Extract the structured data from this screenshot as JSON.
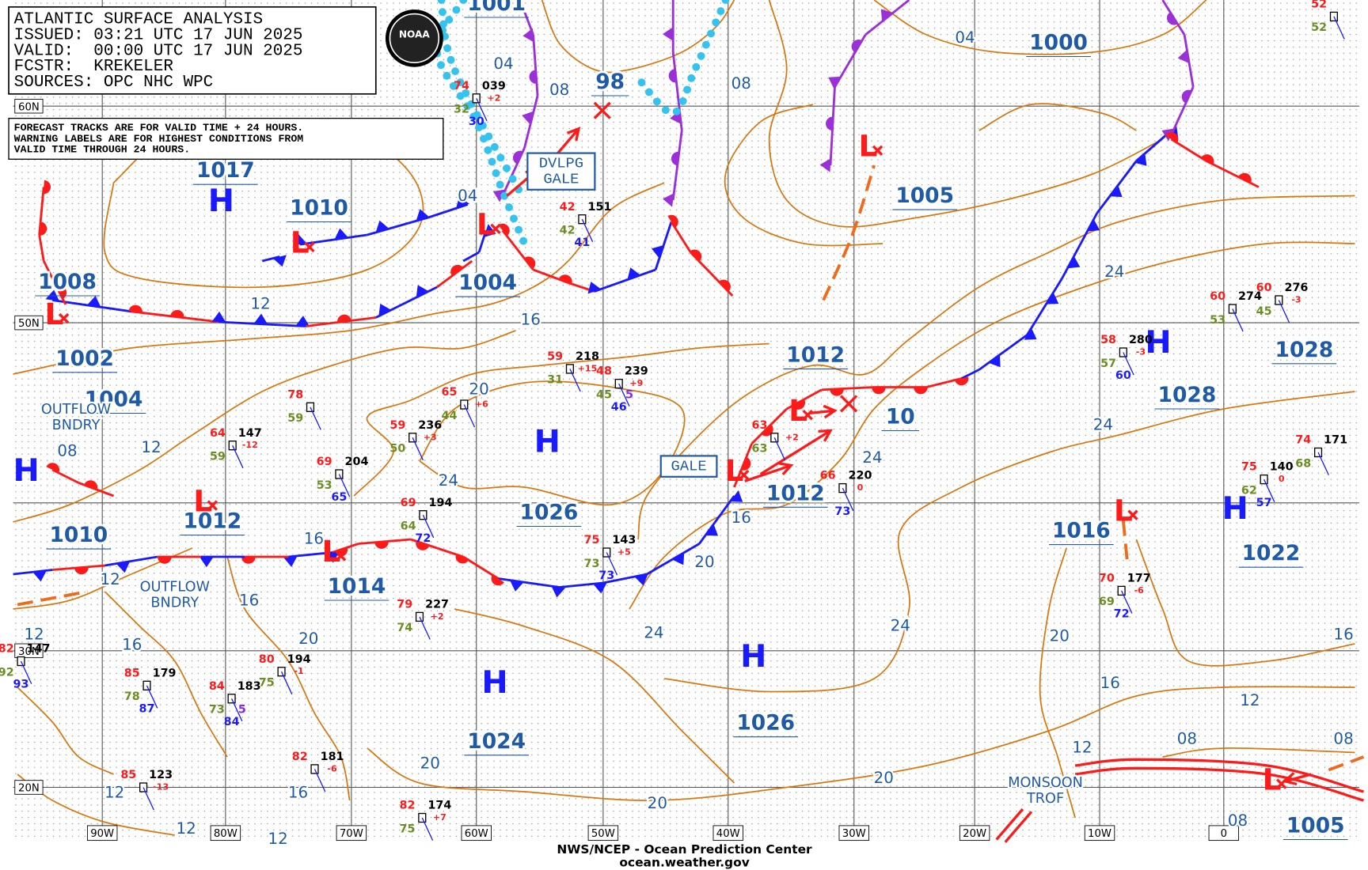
{
  "header": {
    "lines": [
      "ATLANTIC SURFACE ANALYSIS",
      "ISSUED: 03:21 UTC 17 JUN 2025",
      "VALID:  00:00 UTC 17 JUN 2025",
      "FCSTR:  KREKELER",
      "SOURCES: OPC NHC WPC"
    ]
  },
  "logo": "NOAA",
  "notice": {
    "lines": [
      "FORECAST TRACKS ARE FOR VALID TIME + 24 HOURS.",
      "WARNING LABELS ARE FOR HIGHEST CONDITIONS FROM",
      "VALID TIME THROUGH 24 HOURS."
    ]
  },
  "pressure_labels": [
    "1001",
    "1000",
    "98",
    "1017",
    "1010",
    "1005",
    "1008",
    "1004",
    "1002",
    "1004",
    "1012",
    "1028",
    "1028",
    "10",
    "1012",
    "1026",
    "1012",
    "1010",
    "1016",
    "1022",
    "1014",
    "1026",
    "1024",
    "1005"
  ],
  "highs": [
    "H",
    "H",
    "H",
    "H",
    "H",
    "H",
    "H"
  ],
  "lows": [
    "L",
    "L",
    "L",
    "L",
    "L",
    "L",
    "L",
    "L",
    "L",
    "L"
  ],
  "isobar_labels": [
    "04",
    "08",
    "08",
    "04",
    "04",
    "12",
    "16",
    "20",
    "24",
    "24",
    "24",
    "24",
    "12",
    "08",
    "16",
    "20",
    "12",
    "16",
    "16",
    "20",
    "12",
    "16",
    "24",
    "24",
    "20",
    "16",
    "12",
    "12",
    "08",
    "08",
    "08",
    "16",
    "20",
    "20",
    "20",
    "16",
    "12",
    "12",
    "12"
  ],
  "warnings": [
    {
      "lines": [
        "DVLPG",
        "GALE"
      ]
    },
    {
      "lines": [
        "GALE"
      ]
    }
  ],
  "boundaries": [
    {
      "lines": [
        "OUTFLOW",
        "BNDRY"
      ]
    },
    {
      "lines": [
        "OUTFLOW",
        "BNDRY"
      ]
    },
    {
      "lines": [
        "MONSOON",
        "TROF"
      ]
    }
  ],
  "stations": [
    {
      "temp": "74",
      "pressure": "039",
      "tendency": "+2",
      "dewpoint": "32",
      "visibility": "30"
    },
    {
      "temp": "42",
      "pressure": "151",
      "dewpoint": "42",
      "visibility": "41"
    },
    {
      "temp": "59",
      "pressure": "218",
      "tendency": "+15",
      "dewpoint": "31"
    },
    {
      "temp": "48",
      "pressure": "239",
      "tendency": "+9",
      "dewpoint": "45",
      "weather": "5",
      "visibility": "46"
    },
    {
      "temp": "59",
      "pressure": "236",
      "tendency": "+3",
      "dewpoint": "50"
    },
    {
      "temp": "65",
      "tendency": "+6",
      "dewpoint": "44"
    },
    {
      "temp": "69",
      "pressure": "204",
      "dewpoint": "53",
      "visibility": "65"
    },
    {
      "temp": "69",
      "pressure": "194",
      "dewpoint": "64",
      "visibility": "72"
    },
    {
      "temp": "78",
      "dewpoint": "59"
    },
    {
      "temp": "64",
      "pressure": "147",
      "tendency": "-12",
      "dewpoint": "59"
    },
    {
      "temp": "75",
      "pressure": "143",
      "tendency": "+5",
      "dewpoint": "73",
      "visibility": "73"
    },
    {
      "temp": "79",
      "pressure": "227",
      "tendency": "+2",
      "dewpoint": "74"
    },
    {
      "temp": "80",
      "pressure": "194",
      "tendency": "-1",
      "dewpoint": "75"
    },
    {
      "temp": "85",
      "pressure": "179",
      "dewpoint": "78",
      "visibility": "87"
    },
    {
      "temp": "84",
      "pressure": "183",
      "dewpoint": "73",
      "weather": "5",
      "visibility": "84"
    },
    {
      "temp": "85",
      "pressure": "123",
      "tendency": "-13"
    },
    {
      "temp": "82",
      "pressure": "181",
      "tendency": "-6"
    },
    {
      "temp": "82",
      "pressure": "174",
      "tendency": "+7",
      "dewpoint": "75"
    },
    {
      "temp": "70",
      "pressure": "177",
      "tendency": "-6",
      "dewpoint": "69",
      "visibility": "72"
    },
    {
      "temp": "58",
      "pressure": "280",
      "tendency": "-3",
      "dewpoint": "57",
      "visibility": "60"
    },
    {
      "temp": "60",
      "pressure": "274",
      "dewpoint": "53"
    },
    {
      "temp": "60",
      "pressure": "276",
      "tendency": "-3",
      "dewpoint": "45"
    },
    {
      "temp": "75",
      "pressure": "140",
      "tendency": "0",
      "dewpoint": "62",
      "visibility": "57"
    },
    {
      "temp": "66",
      "pressure": "220",
      "tendency": "0",
      "visibility": "73"
    },
    {
      "temp": "63",
      "tendency": "+2",
      "dewpoint": "63"
    },
    {
      "temp": "52",
      "dewpoint": "52"
    },
    {
      "temp": "74",
      "pressure": "171",
      "dewpoint": "68"
    },
    {
      "temp": "82",
      "pressure": "147",
      "dewpoint": "92",
      "visibility": "93"
    }
  ],
  "lat_labels": [
    "60N",
    "50N",
    "30N",
    "20N"
  ],
  "lon_labels": [
    "90W",
    "80W",
    "70W",
    "60W",
    "50W",
    "40W",
    "30W",
    "20W",
    "10W",
    "0"
  ],
  "footer": {
    "agency": "NWS/NCEP - Ocean Prediction Center",
    "url": "ocean.weather.gov"
  }
}
